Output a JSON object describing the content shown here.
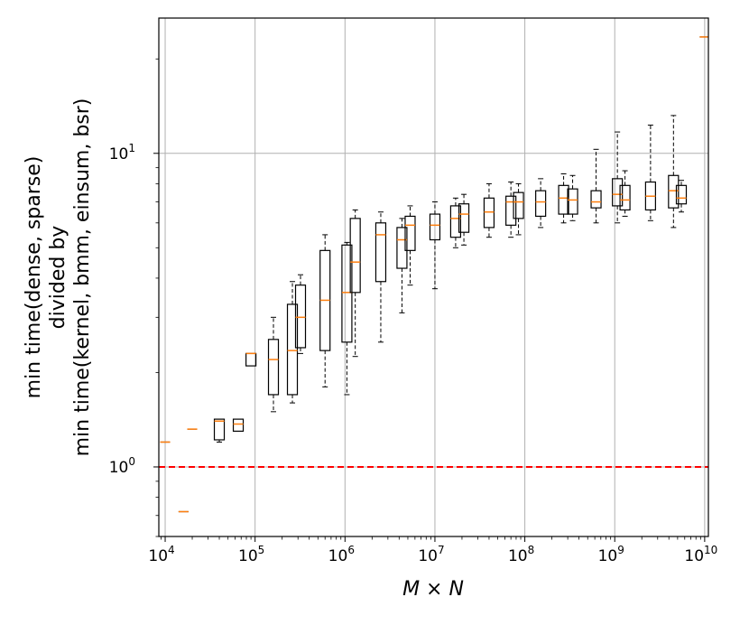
{
  "chart_data": {
    "type": "box",
    "xlabel": "M × N",
    "ylabel_lines": [
      "min time(dense, sparse)",
      "divided by",
      "min time(kernel, bmm, einsum, bsr)"
    ],
    "xscale": "log",
    "yscale": "log",
    "xlim": [
      8500,
      11000000000
    ],
    "ylim": [
      0.6,
      27
    ],
    "grid": true,
    "x_ticks": [
      {
        "base": "10",
        "exp": "4",
        "value": 10000
      },
      {
        "base": "10",
        "exp": "5",
        "value": 100000
      },
      {
        "base": "10",
        "exp": "6",
        "value": 1000000
      },
      {
        "base": "10",
        "exp": "7",
        "value": 10000000
      },
      {
        "base": "10",
        "exp": "8",
        "value": 100000000
      },
      {
        "base": "10",
        "exp": "9",
        "value": 1000000000
      },
      {
        "base": "10",
        "exp": "10",
        "value": 10000000000
      }
    ],
    "y_ticks": [
      {
        "base": "10",
        "exp": "0",
        "value": 1
      },
      {
        "base": "10",
        "exp": "1",
        "value": 10
      }
    ],
    "reference_line": {
      "y": 1.0,
      "color": "#ff0000",
      "style": "dashed"
    },
    "box_color": "#000000",
    "median_color": "#ff7f0e",
    "boxes": [
      {
        "x": 10000,
        "low": 1.2,
        "q1": 1.2,
        "med": 1.2,
        "q3": 1.2,
        "high": 1.2
      },
      {
        "x": 16000,
        "low": 0.72,
        "q1": 0.72,
        "med": 0.72,
        "q3": 0.72,
        "high": 0.72
      },
      {
        "x": 20000,
        "low": 1.32,
        "q1": 1.32,
        "med": 1.32,
        "q3": 1.32,
        "high": 1.32
      },
      {
        "x": 40000,
        "low": 1.2,
        "q1": 1.22,
        "med": 1.4,
        "q3": 1.42,
        "high": 1.42
      },
      {
        "x": 65000,
        "low": 1.3,
        "q1": 1.3,
        "med": 1.37,
        "q3": 1.42,
        "high": 1.42
      },
      {
        "x": 90000,
        "low": 2.1,
        "q1": 2.1,
        "med": 2.3,
        "q3": 2.3,
        "high": 2.3
      },
      {
        "x": 160000,
        "low": 1.5,
        "q1": 1.7,
        "med": 2.2,
        "q3": 2.55,
        "high": 3.0
      },
      {
        "x": 260000,
        "low": 1.6,
        "q1": 1.7,
        "med": 2.35,
        "q3": 3.3,
        "high": 3.9
      },
      {
        "x": 320000,
        "low": 2.3,
        "q1": 2.4,
        "med": 3.0,
        "q3": 3.8,
        "high": 4.1
      },
      {
        "x": 600000,
        "low": 1.8,
        "q1": 2.35,
        "med": 3.4,
        "q3": 4.9,
        "high": 5.5
      },
      {
        "x": 1050000,
        "low": 1.7,
        "q1": 2.5,
        "med": 3.6,
        "q3": 5.1,
        "high": 5.2
      },
      {
        "x": 1300000,
        "low": 2.25,
        "q1": 3.6,
        "med": 4.5,
        "q3": 6.2,
        "high": 6.6
      },
      {
        "x": 2500000,
        "low": 2.5,
        "q1": 3.9,
        "med": 5.5,
        "q3": 6.0,
        "high": 6.5
      },
      {
        "x": 4300000,
        "low": 3.1,
        "q1": 4.3,
        "med": 5.3,
        "q3": 5.8,
        "high": 6.2
      },
      {
        "x": 5300000,
        "low": 3.8,
        "q1": 4.9,
        "med": 5.9,
        "q3": 6.3,
        "high": 6.8
      },
      {
        "x": 10000000,
        "low": 3.7,
        "q1": 5.3,
        "med": 5.9,
        "q3": 6.4,
        "high": 7.0
      },
      {
        "x": 17000000,
        "low": 5.0,
        "q1": 5.4,
        "med": 6.2,
        "q3": 6.8,
        "high": 7.2
      },
      {
        "x": 21000000,
        "low": 5.1,
        "q1": 5.6,
        "med": 6.4,
        "q3": 6.9,
        "high": 7.4
      },
      {
        "x": 40000000,
        "low": 5.4,
        "q1": 5.8,
        "med": 6.5,
        "q3": 7.2,
        "high": 8.0
      },
      {
        "x": 70000000,
        "low": 5.4,
        "q1": 5.9,
        "med": 7.0,
        "q3": 7.3,
        "high": 8.1
      },
      {
        "x": 85000000,
        "low": 5.5,
        "q1": 6.2,
        "med": 7.0,
        "q3": 7.5,
        "high": 8.0
      },
      {
        "x": 150000000,
        "low": 5.8,
        "q1": 6.3,
        "med": 7.0,
        "q3": 7.6,
        "high": 8.3
      },
      {
        "x": 270000000,
        "low": 6.0,
        "q1": 6.4,
        "med": 7.2,
        "q3": 7.9,
        "high": 8.6
      },
      {
        "x": 340000000,
        "low": 6.1,
        "q1": 6.4,
        "med": 7.1,
        "q3": 7.7,
        "high": 8.5
      },
      {
        "x": 620000000,
        "low": 6.0,
        "q1": 6.7,
        "med": 7.0,
        "q3": 7.6,
        "high": 10.3
      },
      {
        "x": 1070000000,
        "low": 6.0,
        "q1": 6.8,
        "med": 7.4,
        "q3": 8.3,
        "high": 11.7
      },
      {
        "x": 1300000000,
        "low": 6.3,
        "q1": 6.6,
        "med": 7.1,
        "q3": 7.9,
        "high": 8.8
      },
      {
        "x": 2500000000,
        "low": 6.1,
        "q1": 6.6,
        "med": 7.3,
        "q3": 8.1,
        "high": 12.3
      },
      {
        "x": 4500000000,
        "low": 5.8,
        "q1": 6.7,
        "med": 7.6,
        "q3": 8.5,
        "high": 13.2
      },
      {
        "x": 5500000000,
        "low": 6.5,
        "q1": 6.9,
        "med": 7.2,
        "q3": 7.9,
        "high": 8.2
      },
      {
        "x": 10000000000,
        "low": 23.5,
        "q1": 23.5,
        "med": 23.5,
        "q3": 23.5,
        "high": 23.5
      }
    ]
  }
}
